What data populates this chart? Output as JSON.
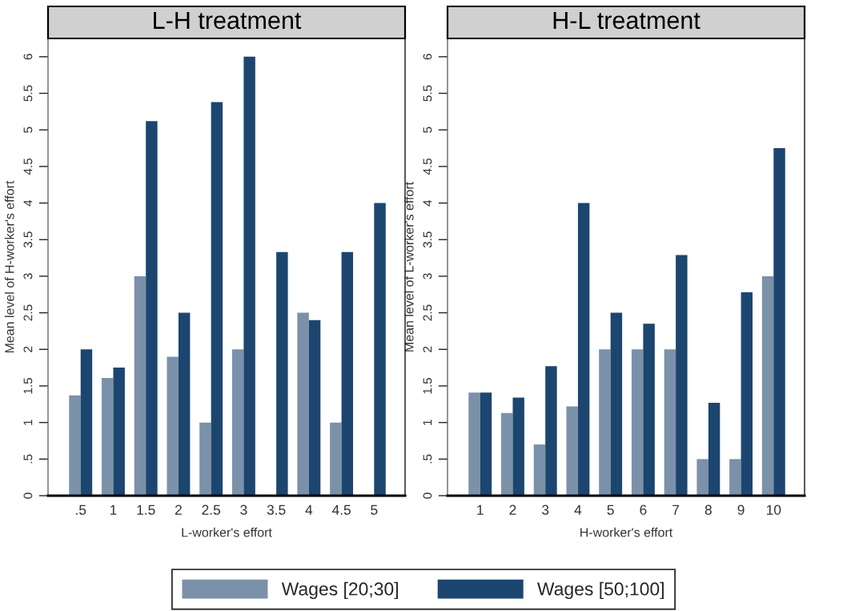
{
  "chart_data": [
    {
      "type": "bar",
      "title": "L-H treatment",
      "xlabel": "L-worker's effort",
      "ylabel": "Mean level of H-worker's effort",
      "categories": [
        ".5",
        "1",
        "1.5",
        "2",
        "2.5",
        "3",
        "3.5",
        "4",
        "4.5",
        "5"
      ],
      "series": [
        {
          "name": "Wages [20;30]",
          "color": "#7b91a9",
          "values": [
            1.37,
            1.61,
            3.0,
            1.9,
            1.0,
            2.0,
            null,
            2.5,
            1.0,
            null
          ]
        },
        {
          "name": "Wages [50;100]",
          "color": "#1c466f",
          "values": [
            2.0,
            1.75,
            5.12,
            2.5,
            5.38,
            6.0,
            3.33,
            2.4,
            3.33,
            4.0
          ]
        }
      ],
      "ylim": [
        0,
        6.25
      ],
      "yticks": [
        0,
        {
          "value": 0.5,
          "label": ".5"
        },
        1,
        1.5,
        2,
        2.5,
        3,
        3.5,
        4,
        4.5,
        5,
        5.5,
        6
      ],
      "grid": false,
      "legend": "bottom"
    },
    {
      "type": "bar",
      "title": "H-L treatment",
      "xlabel": "H-worker's effort",
      "ylabel": "Mean level of L-worker's effort",
      "categories": [
        "1",
        "2",
        "3",
        "4",
        "5",
        "6",
        "7",
        "8",
        "9",
        "10"
      ],
      "series": [
        {
          "color": "#7b91a9",
          "values": [
            1.41,
            1.13,
            0.7,
            1.22,
            2.0,
            2.0,
            2.0,
            0.5,
            0.5,
            3.0
          ]
        },
        {
          "color": "#1c466f",
          "values": [
            1.41,
            1.34,
            1.77,
            4.0,
            2.5,
            2.35,
            3.29,
            1.27,
            2.78,
            4.75
          ]
        }
      ],
      "ylim": [
        0,
        6.25
      ],
      "yticks": [
        0,
        {
          "value": 0.5,
          "label": ".5"
        },
        1,
        1.5,
        2,
        2.5,
        3,
        3.5,
        4,
        4.5,
        5,
        5.5,
        6
      ],
      "grid": false
    }
  ]
}
